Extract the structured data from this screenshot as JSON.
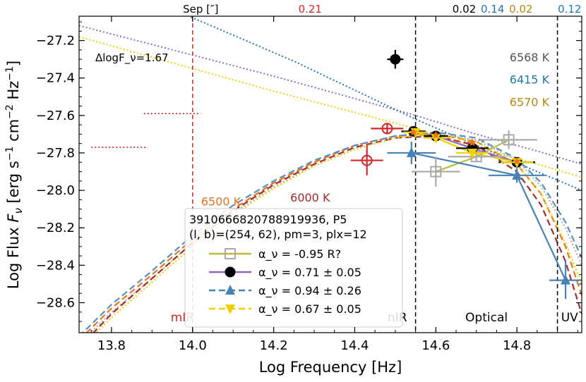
{
  "chart_data": {
    "type": "scatter",
    "xlabel": "Log Frequency [Hz]",
    "ylabel": "Log Flux F_ν [erg s⁻¹ cm⁻² Hz⁻¹]",
    "xlim": [
      13.72,
      14.96
    ],
    "ylim": [
      -28.76,
      -27.07
    ],
    "x_ticks": [
      {
        "v": 13.8,
        "label": "13.8"
      },
      {
        "v": 14.0,
        "label": "14.0"
      },
      {
        "v": 14.2,
        "label": "14.2"
      },
      {
        "v": 14.4,
        "label": "14.4"
      },
      {
        "v": 14.6,
        "label": "14.6"
      },
      {
        "v": 14.8,
        "label": "14.8"
      }
    ],
    "y_ticks": [
      {
        "v": -27.2,
        "label": "−27.2"
      },
      {
        "v": -27.4,
        "label": "−27.4"
      },
      {
        "v": -27.6,
        "label": "−27.6"
      },
      {
        "v": -27.8,
        "label": "−27.8"
      },
      {
        "v": -28.0,
        "label": "−28.0"
      },
      {
        "v": -28.2,
        "label": "−28.2"
      },
      {
        "v": -28.4,
        "label": "−28.4"
      },
      {
        "v": -28.6,
        "label": "−28.6"
      }
    ],
    "top_labels": [
      {
        "x": 14.02,
        "text": "Sep [″]",
        "color": "#000000"
      },
      {
        "x": 14.29,
        "text": "0.21",
        "color": "#d62728"
      },
      {
        "x": 14.67,
        "text": "0.02",
        "color": "#000000"
      },
      {
        "x": 14.74,
        "text": "0.14",
        "color": "#1f77b4"
      },
      {
        "x": 14.81,
        "text": "0.02",
        "color": "#b8860b"
      },
      {
        "x": 14.93,
        "text": "0.12",
        "color": "#1f77b4"
      }
    ],
    "band_lines": [
      {
        "x": 14.0,
        "color": "#d62728",
        "label": "mIR",
        "lx": 13.975
      },
      {
        "x": 14.55,
        "color": "#000000",
        "label": "nIR",
        "lx": 14.505
      },
      {
        "x": 14.9,
        "color": "#000000",
        "label": "UV",
        "lx": 14.93
      }
    ],
    "optical_label": {
      "text": "Optical",
      "x": 14.725,
      "y": -28.7
    },
    "delta_label": {
      "text": "ΔlogF_ν=1.67",
      "x": 13.76,
      "y": -27.31
    },
    "temperature_labels": [
      {
        "text": "6568 K",
        "color": "#555555",
        "x": 14.88,
        "y": -27.31
      },
      {
        "text": "6415 K",
        "color": "#1f77b4",
        "x": 14.88,
        "y": -27.43
      },
      {
        "text": "6570 K",
        "color": "#b8860b",
        "x": 14.88,
        "y": -27.55
      },
      {
        "text": "6500 K",
        "color": "#e8741c",
        "x": 14.07,
        "y": -28.08
      },
      {
        "text": "6000 K",
        "color": "#a52a2a",
        "x": 14.29,
        "y": -28.06
      }
    ],
    "curves": [
      {
        "name": "power-law purple",
        "color": "#9467bd",
        "dash": "2,3",
        "width": 2,
        "points": [
          [
            13.72,
            -27.12
          ],
          [
            14.2,
            -27.39
          ],
          [
            14.55,
            -27.6
          ],
          [
            14.7,
            -27.7
          ],
          [
            14.85,
            -27.79
          ],
          [
            14.96,
            -27.86
          ]
        ]
      },
      {
        "name": "power-law gold",
        "color": "#f0d000",
        "dash": "2,3",
        "width": 2,
        "points": [
          [
            13.72,
            -27.18
          ],
          [
            14.2,
            -27.47
          ],
          [
            14.55,
            -27.67
          ],
          [
            14.7,
            -27.77
          ],
          [
            14.85,
            -27.86
          ],
          [
            14.96,
            -27.93
          ]
        ]
      },
      {
        "name": "power-law blue",
        "color": "#1f77b4",
        "dash": "2,3",
        "width": 2,
        "points": [
          [
            13.98,
            -27.06
          ],
          [
            14.25,
            -27.31
          ],
          [
            14.55,
            -27.62
          ],
          [
            14.7,
            -27.76
          ],
          [
            14.85,
            -27.9
          ],
          [
            14.96,
            -28.0
          ]
        ]
      },
      {
        "name": "blackbody gray",
        "color": "#b0b0b0",
        "dash": "2,3",
        "width": 2.2,
        "points": [
          [
            13.72,
            -28.82
          ],
          [
            13.8,
            -28.65
          ],
          [
            13.9,
            -28.47
          ],
          [
            14.0,
            -28.28
          ],
          [
            14.1,
            -28.12
          ],
          [
            14.2,
            -27.98
          ],
          [
            14.3,
            -27.87
          ],
          [
            14.4,
            -27.78
          ],
          [
            14.5,
            -27.72
          ],
          [
            14.6,
            -27.7
          ],
          [
            14.7,
            -27.73
          ],
          [
            14.8,
            -27.84
          ],
          [
            14.86,
            -27.98
          ],
          [
            14.92,
            -28.2
          ],
          [
            14.96,
            -28.4
          ]
        ]
      },
      {
        "name": "blackbody 6500K",
        "color": "#e8741c",
        "dash": "9,5",
        "width": 2.2,
        "points": [
          [
            13.72,
            -28.8
          ],
          [
            13.8,
            -28.63
          ],
          [
            13.9,
            -28.45
          ],
          [
            14.0,
            -28.26
          ],
          [
            14.1,
            -28.1
          ],
          [
            14.2,
            -27.96
          ],
          [
            14.3,
            -27.85
          ],
          [
            14.4,
            -27.76
          ],
          [
            14.5,
            -27.71
          ],
          [
            14.6,
            -27.7
          ],
          [
            14.7,
            -27.74
          ],
          [
            14.8,
            -27.86
          ],
          [
            14.86,
            -28.02
          ],
          [
            14.92,
            -28.3
          ],
          [
            14.96,
            -28.56
          ]
        ]
      },
      {
        "name": "blackbody 6000K",
        "color": "#a52a2a",
        "dash": "9,5",
        "width": 2.2,
        "points": [
          [
            13.72,
            -28.84
          ],
          [
            13.8,
            -28.66
          ],
          [
            13.9,
            -28.47
          ],
          [
            14.0,
            -28.28
          ],
          [
            14.1,
            -28.11
          ],
          [
            14.2,
            -27.97
          ],
          [
            14.3,
            -27.86
          ],
          [
            14.4,
            -27.77
          ],
          [
            14.5,
            -27.72
          ],
          [
            14.6,
            -27.71
          ],
          [
            14.7,
            -27.76
          ],
          [
            14.8,
            -27.9
          ],
          [
            14.86,
            -28.08
          ],
          [
            14.92,
            -28.38
          ],
          [
            14.96,
            -28.66
          ]
        ]
      },
      {
        "name": "blackbody blue",
        "color": "#5a8fc0",
        "dash": "9,5",
        "width": 2.2,
        "points": [
          [
            13.72,
            -28.78
          ],
          [
            13.8,
            -28.61
          ],
          [
            13.9,
            -28.43
          ],
          [
            14.0,
            -28.24
          ],
          [
            14.1,
            -28.08
          ],
          [
            14.2,
            -27.95
          ],
          [
            14.3,
            -27.84
          ],
          [
            14.4,
            -27.76
          ],
          [
            14.5,
            -27.71
          ],
          [
            14.6,
            -27.69
          ],
          [
            14.7,
            -27.72
          ],
          [
            14.8,
            -27.83
          ],
          [
            14.86,
            -27.96
          ],
          [
            14.92,
            -28.17
          ],
          [
            14.96,
            -28.36
          ]
        ]
      },
      {
        "name": "blackbody gold",
        "color": "#f0d000",
        "dash": "2,3",
        "width": 2.2,
        "points": [
          [
            13.72,
            -28.85
          ],
          [
            13.8,
            -28.68
          ],
          [
            13.9,
            -28.49
          ],
          [
            14.0,
            -28.3
          ],
          [
            14.1,
            -28.13
          ],
          [
            14.2,
            -27.99
          ],
          [
            14.3,
            -27.87
          ],
          [
            14.4,
            -27.78
          ],
          [
            14.5,
            -27.72
          ],
          [
            14.6,
            -27.7
          ],
          [
            14.7,
            -27.74
          ],
          [
            14.8,
            -27.86
          ],
          [
            14.86,
            -28.02
          ],
          [
            14.92,
            -28.28
          ],
          [
            14.96,
            -28.5
          ]
        ]
      }
    ],
    "series": [
      {
        "name": "α_ν = -0.95  R?",
        "color": "#bcbc3c",
        "marker": "square-open",
        "marker_color": "#aaaaaa",
        "points": [
          {
            "x": 14.6,
            "y": -27.9,
            "xerr": 0.06,
            "yerr": 0.08
          },
          {
            "x": 14.7,
            "y": -27.82,
            "xerr": 0.07,
            "yerr": 0.03
          },
          {
            "x": 14.78,
            "y": -27.73,
            "xerr": 0.07,
            "yerr": 0.05
          }
        ]
      },
      {
        "name": "α_ν = 0.71 ± 0.05",
        "color": "#9467bd",
        "marker": "circle",
        "marker_color": "#000000",
        "points": [
          {
            "x": 14.545,
            "y": -27.685,
            "xerr": 0.03,
            "yerr": 0.02
          },
          {
            "x": 14.6,
            "y": -27.71,
            "xerr": 0.03,
            "yerr": 0.02
          },
          {
            "x": 14.69,
            "y": -27.775,
            "xerr": 0.04,
            "yerr": 0.02
          },
          {
            "x": 14.8,
            "y": -27.85,
            "xerr": 0.045,
            "yerr": 0.02
          }
        ]
      },
      {
        "name": "α_ν = 0.94 ± 0.26",
        "color": "#4682b4",
        "marker": "triangle-up",
        "marker_color": "#4682b4",
        "points": [
          {
            "x": 14.54,
            "y": -27.8,
            "xerr": 0.06,
            "yerr": 0.06
          },
          {
            "x": 14.8,
            "y": -27.92,
            "xerr": 0.07,
            "yerr": 0.04
          },
          {
            "x": 14.92,
            "y": -28.48,
            "xerr": 0.04,
            "yerr": 0.1
          }
        ]
      },
      {
        "name": "α_ν = 0.67 ± 0.05",
        "color": "#f0d000",
        "marker": "triangle-down",
        "marker_color": "#f0d000",
        "points": [
          {
            "x": 14.55,
            "y": -27.69,
            "xerr": 0.03,
            "yerr": 0.02
          },
          {
            "x": 14.6,
            "y": -27.72,
            "xerr": 0.03,
            "yerr": 0.02
          },
          {
            "x": 14.69,
            "y": -27.8,
            "xerr": 0.04,
            "yerr": 0.02
          },
          {
            "x": 14.8,
            "y": -27.85,
            "xerr": 0.04,
            "yerr": 0.02
          }
        ]
      }
    ],
    "extra_points": [
      {
        "name": "black outlier",
        "x": 14.5,
        "y": -27.3,
        "xerr": 0.02,
        "yerr": 0.05,
        "marker": "circle",
        "color": "#000000"
      },
      {
        "name": "red 1",
        "x": 14.43,
        "y": -27.84,
        "xerr": 0.04,
        "yerr": 0.08,
        "marker": "circle-open",
        "color": "#d62728"
      },
      {
        "name": "red 2",
        "x": 14.48,
        "y": -27.67,
        "xerr": 0.04,
        "yerr": 0.03,
        "marker": "circle-open",
        "color": "#d62728"
      }
    ],
    "star_points": [
      [
        14.545,
        -27.69
      ],
      [
        14.6,
        -27.705
      ],
      [
        14.69,
        -27.745
      ],
      [
        14.8,
        -27.845
      ]
    ],
    "upper_limits": [
      {
        "x1": 13.88,
        "x2": 14.02,
        "y": -27.59,
        "color": "#d62728"
      },
      {
        "x1": 13.75,
        "x2": 13.89,
        "y": -27.77,
        "color": "#d62728"
      }
    ],
    "legend": {
      "title_line1": "3910666820788919936, P5",
      "title_line2": "(l, b)=(254, 62), pm=3, plx=12",
      "entries": [
        {
          "label": "α_ν =  -0.95    R?",
          "color": "#bcbc3c",
          "marker": "square-open",
          "marker_color": "#aaaaaa",
          "dash": "",
          "mlabel": "α",
          "rest": "ν =  -0.95    R?"
        },
        {
          "label": "α_ν =  0.71 ± 0.05",
          "color": "#9467bd",
          "marker": "circle",
          "marker_color": "#000000",
          "dash": "",
          "rest": "ν =  0.71 ± 0.05"
        },
        {
          "label": "α_ν =  0.94 ± 0.26",
          "color": "#4682b4",
          "marker": "triangle-up",
          "marker_color": "#4682b4",
          "dash": "9,5",
          "rest": "ν =  0.94 ± 0.26"
        },
        {
          "label": "α_ν =  0.67 ± 0.05",
          "color": "#f0d000",
          "marker": "triangle-down",
          "marker_color": "#f0d000",
          "dash": "9,5",
          "rest": "ν =  0.67 ± 0.05"
        }
      ]
    }
  }
}
